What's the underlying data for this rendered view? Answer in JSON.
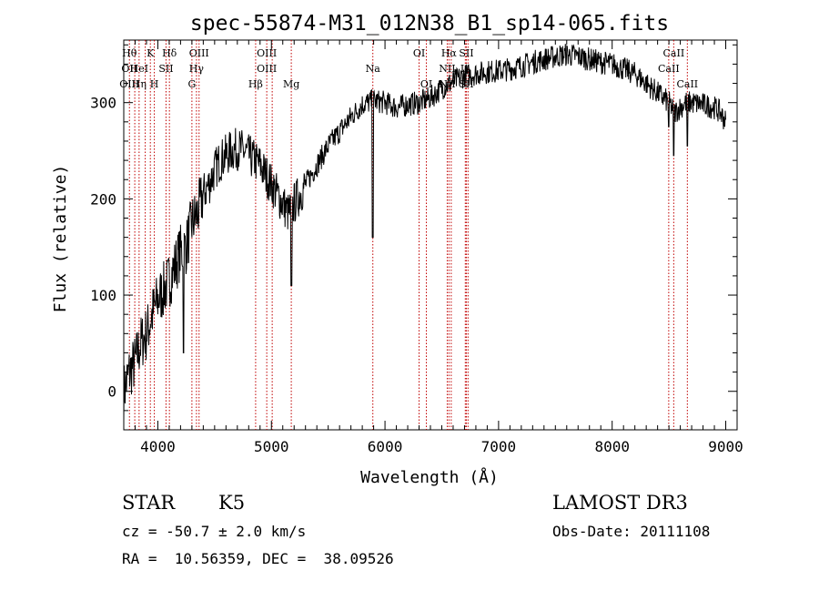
{
  "chart_data": {
    "type": "line",
    "title": "spec-55874-M31_012N38_B1_sp14-065.fits",
    "xlabel": "Wavelength (Å)",
    "ylabel": "Flux (relative)",
    "xlim": [
      3700,
      9100
    ],
    "ylim": [
      -40,
      365
    ],
    "xticks": [
      4000,
      5000,
      6000,
      7000,
      8000,
      9000
    ],
    "yticks": [
      0,
      100,
      200,
      300
    ],
    "series": [
      {
        "name": "flux",
        "x": [
          3700,
          3750,
          3800,
          3850,
          3900,
          3950,
          4000,
          4050,
          4100,
          4150,
          4200,
          4250,
          4300,
          4350,
          4400,
          4450,
          4500,
          4550,
          4600,
          4650,
          4700,
          4750,
          4800,
          4850,
          4900,
          4950,
          5000,
          5050,
          5100,
          5150,
          5200,
          5250,
          5300,
          5400,
          5500,
          5600,
          5700,
          5800,
          5900,
          6000,
          6100,
          6200,
          6300,
          6400,
          6500,
          6600,
          6700,
          6800,
          6900,
          7000,
          7100,
          7200,
          7300,
          7400,
          7500,
          7600,
          7700,
          7800,
          7900,
          8000,
          8100,
          8200,
          8300,
          8400,
          8500,
          8550,
          8600,
          8650,
          8700,
          8800,
          8900,
          8950,
          9000
        ],
        "values": [
          0,
          20,
          30,
          50,
          60,
          80,
          95,
          105,
          115,
          130,
          145,
          150,
          175,
          185,
          205,
          215,
          230,
          240,
          245,
          250,
          252,
          250,
          245,
          240,
          235,
          225,
          215,
          205,
          195,
          185,
          195,
          205,
          215,
          235,
          255,
          270,
          285,
          298,
          302,
          300,
          295,
          298,
          300,
          305,
          315,
          322,
          328,
          330,
          332,
          333,
          335,
          338,
          342,
          345,
          348,
          350,
          348,
          345,
          342,
          340,
          335,
          330,
          320,
          310,
          300,
          290,
          295,
          300,
          300,
          298,
          295,
          290,
          280
        ]
      }
    ],
    "absorption_dips": [
      {
        "x": 4226,
        "value": 40
      },
      {
        "x": 5175,
        "value": 110
      },
      {
        "x": 5893,
        "value": 160
      },
      {
        "x": 8498,
        "value": 275
      },
      {
        "x": 8542,
        "value": 245
      },
      {
        "x": 8662,
        "value": 255
      }
    ],
    "line_markers": [
      {
        "x": 3750,
        "labels": [
          "Hθ",
          "OII",
          "OIII"
        ]
      },
      {
        "x": 3797,
        "labels": []
      },
      {
        "x": 3835,
        "labels": [
          "",
          "HeI",
          "Hη"
        ]
      },
      {
        "x": 3889,
        "labels": []
      },
      {
        "x": 3934,
        "labels": [
          "K",
          "",
          ""
        ]
      },
      {
        "x": 3969,
        "labels": [
          "",
          "",
          "H"
        ]
      },
      {
        "x": 4072,
        "labels": [
          "",
          "SII",
          ""
        ]
      },
      {
        "x": 4102,
        "labels": [
          "Hδ",
          "",
          ""
        ]
      },
      {
        "x": 4300,
        "labels": [
          "",
          "",
          "G"
        ]
      },
      {
        "x": 4340,
        "labels": [
          "",
          "Hγ",
          ""
        ]
      },
      {
        "x": 4363,
        "labels": [
          "OIII",
          "",
          ""
        ]
      },
      {
        "x": 4861,
        "labels": [
          "",
          "",
          "Hβ"
        ]
      },
      {
        "x": 4959,
        "labels": [
          "OIII",
          "OIII",
          ""
        ]
      },
      {
        "x": 5007,
        "labels": []
      },
      {
        "x": 5175,
        "labels": [
          "",
          "",
          "Mg"
        ]
      },
      {
        "x": 5893,
        "labels": [
          "",
          "Na",
          ""
        ]
      },
      {
        "x": 6300,
        "labels": [
          "OI",
          "",
          ""
        ]
      },
      {
        "x": 6364,
        "labels": [
          "",
          "",
          "OI"
        ]
      },
      {
        "x": 6548,
        "labels": [
          "",
          "NII",
          "NII"
        ]
      },
      {
        "x": 6563,
        "labels": [
          "Hα",
          "",
          ""
        ]
      },
      {
        "x": 6583,
        "labels": []
      },
      {
        "x": 6707,
        "labels": [
          "",
          "Li",
          ""
        ]
      },
      {
        "x": 6716,
        "labels": [
          "SII",
          "",
          "SII"
        ]
      },
      {
        "x": 6731,
        "labels": []
      },
      {
        "x": 8498,
        "labels": [
          "",
          "CaII",
          ""
        ]
      },
      {
        "x": 8542,
        "labels": [
          "CaII",
          "",
          ""
        ]
      },
      {
        "x": 8662,
        "labels": [
          "",
          "",
          "CaII"
        ]
      }
    ]
  },
  "info": {
    "class": "STAR",
    "subclass": "K5",
    "survey": "LAMOST DR3",
    "cz": "cz = -50.7 ± 2.0 km/s",
    "obs_date": "Obs-Date: 20111108",
    "coords": "RA =  10.56359, DEC =  38.09526"
  }
}
